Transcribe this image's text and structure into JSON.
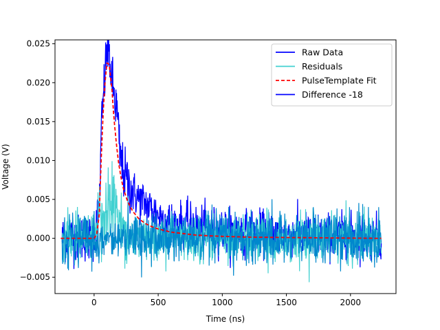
{
  "chart_data": {
    "type": "line",
    "xlabel": "Time (ns)",
    "ylabel": "Voltage (V)",
    "xlim": [
      -305,
      2355
    ],
    "ylim": [
      -0.0071,
      0.0255
    ],
    "xticks": [
      0,
      500,
      1000,
      1500,
      2000
    ],
    "xtick_labels": [
      "0",
      "500",
      "1000",
      "1500",
      "2000"
    ],
    "yticks": [
      -0.005,
      0.0,
      0.005,
      0.01,
      0.015,
      0.02,
      0.025
    ],
    "ytick_labels": [
      "−0.005",
      "0.000",
      "0.005",
      "0.010",
      "0.015",
      "0.020",
      "0.025"
    ],
    "grid": false,
    "legend_position": "top-right",
    "series": [
      {
        "name": "Raw Data",
        "color": "#0000ff",
        "style": "solid",
        "x": [
          -250,
          0,
          40,
          60,
          80,
          100,
          120,
          140,
          160,
          180,
          200,
          220,
          250,
          300,
          350,
          400,
          500,
          600,
          800,
          1000,
          1500,
          2000,
          2240
        ],
        "y": [
          0.0,
          0.0,
          0.004,
          0.015,
          0.02,
          0.024,
          0.0235,
          0.02,
          0.018,
          0.016,
          0.011,
          0.009,
          0.0075,
          0.006,
          0.005,
          0.0045,
          0.003,
          0.002,
          0.0015,
          0.001,
          0.0005,
          0.0003,
          0.0002
        ]
      },
      {
        "name": "Residuals",
        "color": "#40d0d0",
        "style": "solid",
        "x": [
          -250,
          0,
          50,
          100,
          150,
          200,
          250,
          300,
          400,
          500,
          1000,
          1500,
          2000,
          2240
        ],
        "y": [
          0.0,
          0.0,
          0.003,
          0.004,
          0.005,
          0.004,
          0.0,
          0.0,
          0.0,
          0.0,
          0.0,
          0.0,
          0.0,
          0.0
        ]
      },
      {
        "name": "PulseTemplate Fit",
        "color": "#ff0000",
        "style": "dashed",
        "x": [
          -260,
          0,
          20,
          40,
          55,
          70,
          85,
          100,
          110,
          120,
          130,
          140,
          150,
          160,
          175,
          190,
          210,
          230,
          260,
          300,
          350,
          400,
          450,
          500,
          600,
          700,
          800,
          1000,
          1200,
          1500,
          2000,
          2240
        ],
        "y": [
          0.0,
          0.0,
          0.0005,
          0.003,
          0.01,
          0.016,
          0.02,
          0.0225,
          0.0225,
          0.022,
          0.0205,
          0.019,
          0.0165,
          0.0145,
          0.012,
          0.0098,
          0.0078,
          0.0063,
          0.0048,
          0.0035,
          0.0025,
          0.0019,
          0.0015,
          0.0012,
          0.0008,
          0.0006,
          0.0004,
          0.00025,
          0.00015,
          0.0001,
          3e-05,
          0.0
        ]
      },
      {
        "name": "Difference -18",
        "color": "#0000ff",
        "style": "solid",
        "x": [
          -250,
          0,
          50,
          100,
          200,
          300,
          400,
          500,
          1000,
          1500,
          2000,
          2240
        ],
        "y": [
          0.0,
          0.0,
          0.0,
          0.0,
          0.0,
          0.0,
          0.0,
          0.0,
          0.0,
          0.0,
          0.0,
          0.0
        ]
      }
    ]
  },
  "noise_color": "#0088cc"
}
